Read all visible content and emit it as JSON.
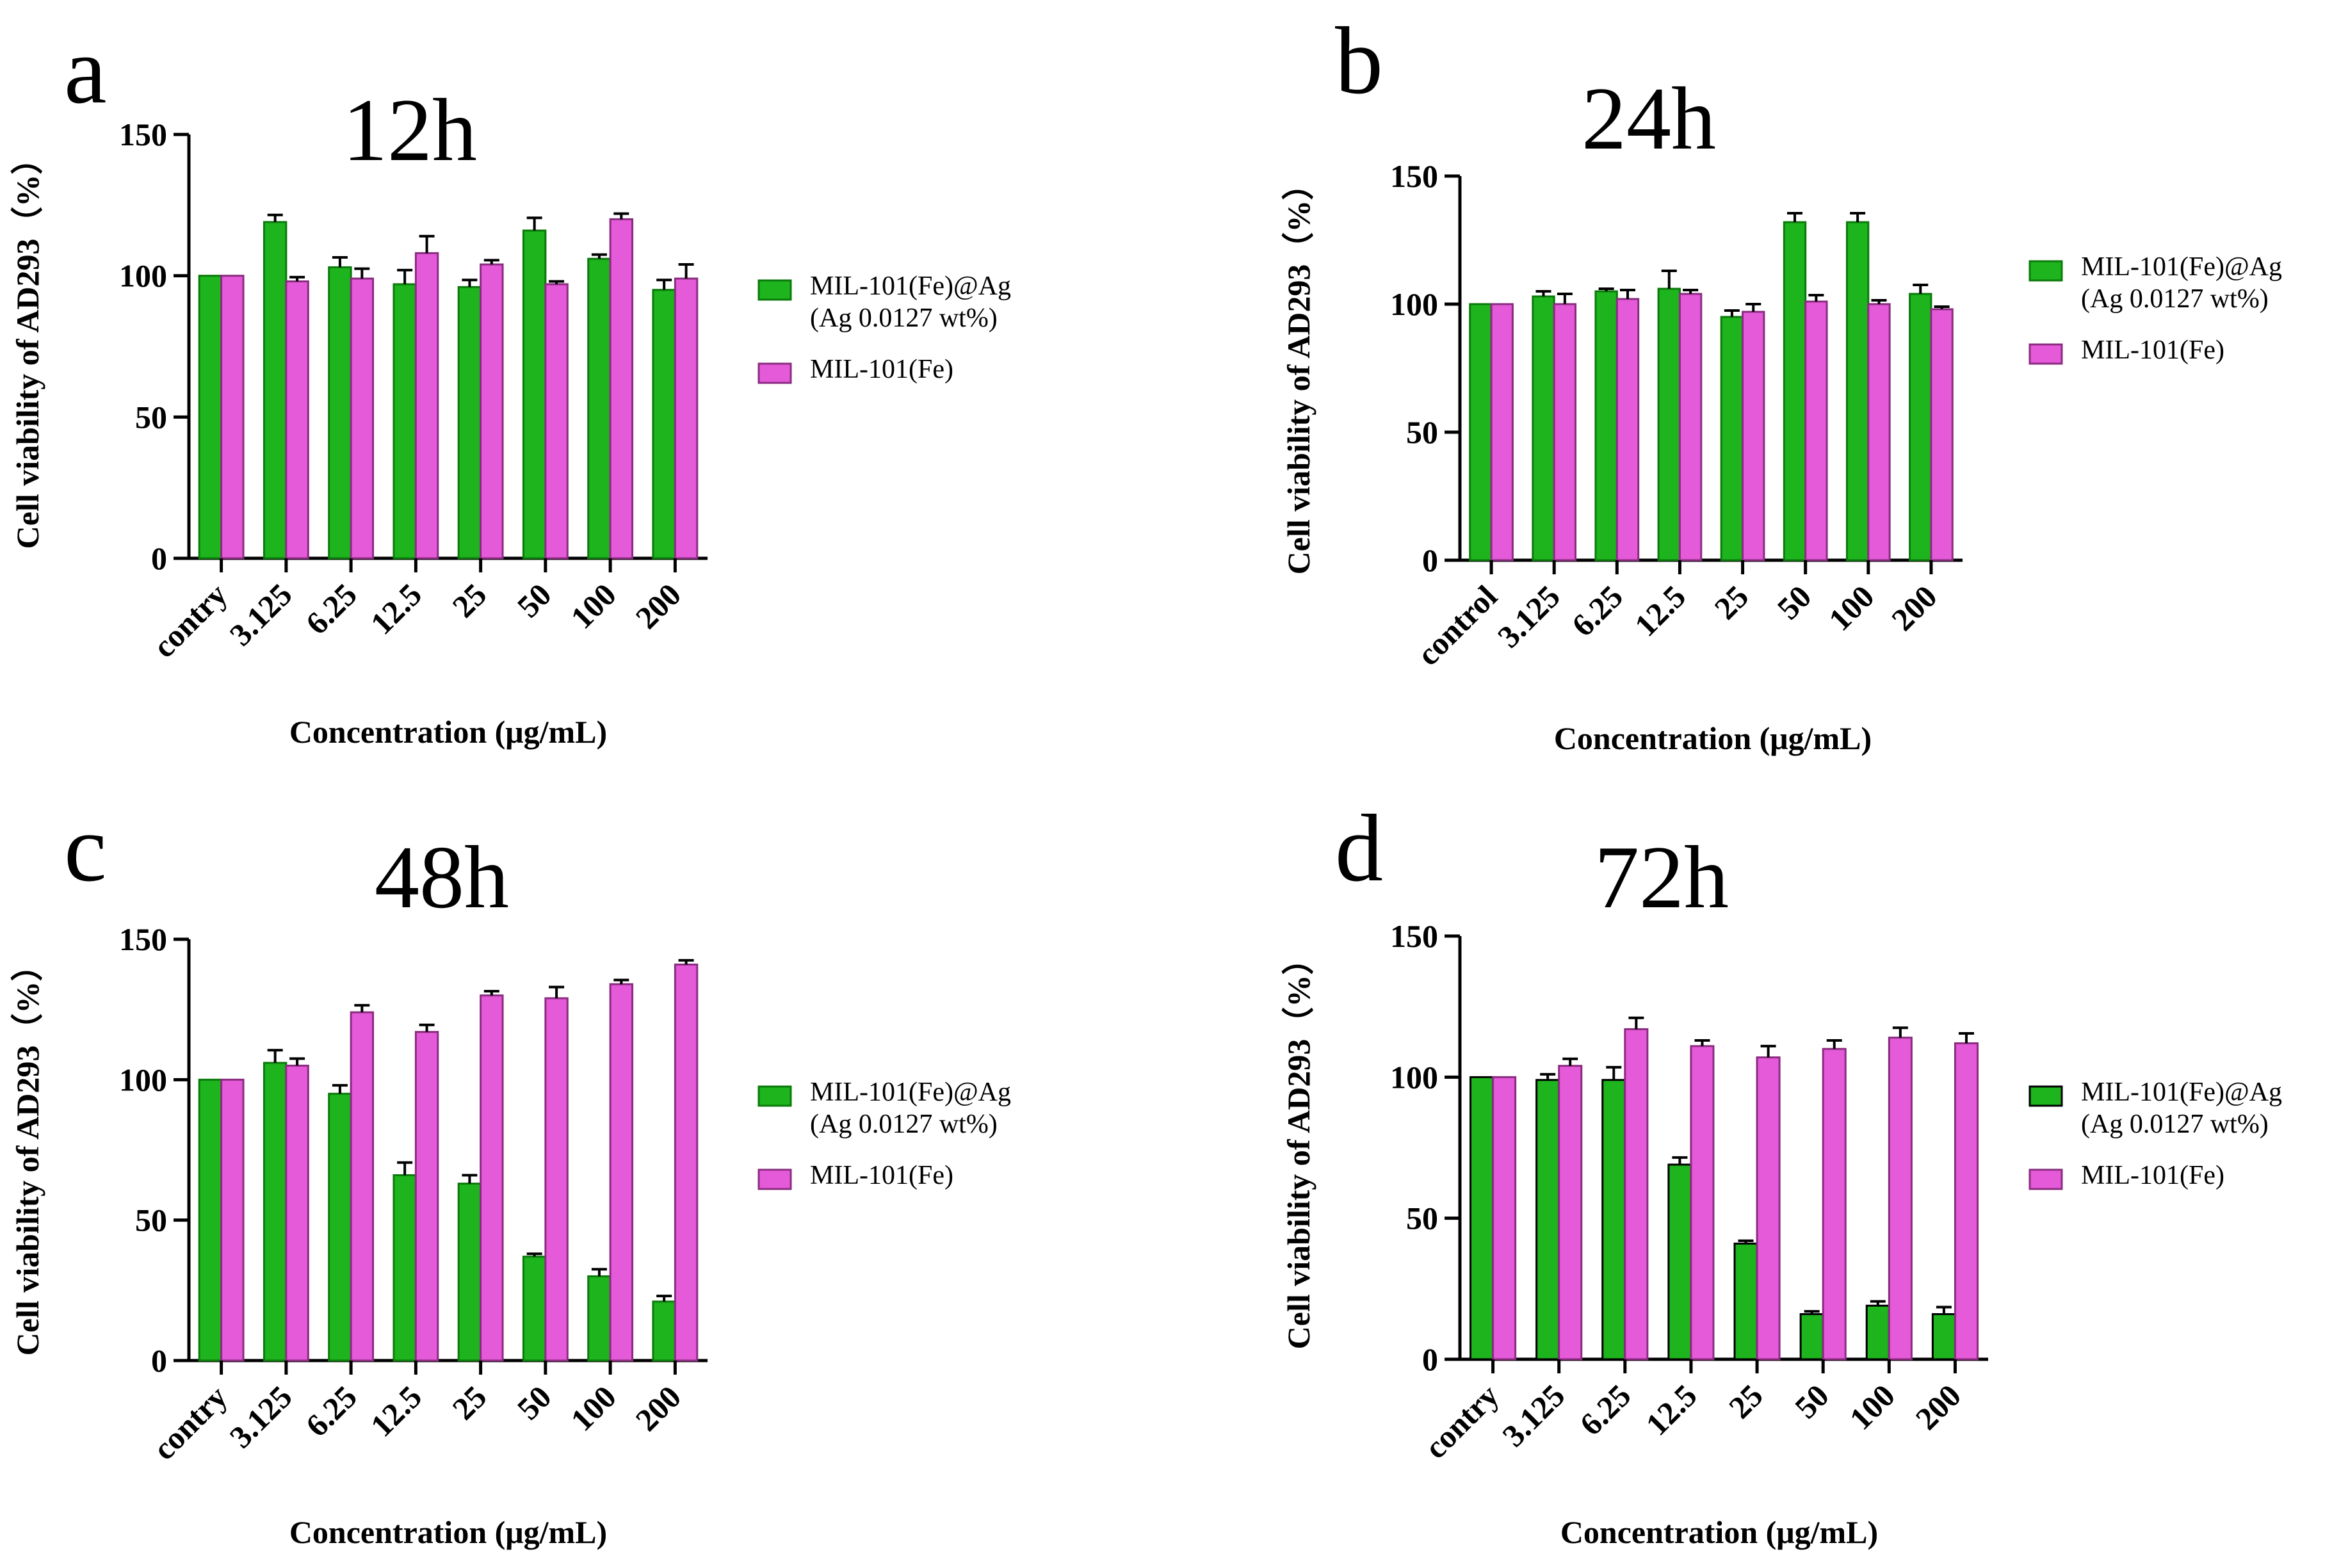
{
  "chart_data": [
    {
      "type": "bar",
      "panel": "a",
      "title": "12h",
      "xlabel": "Concentration (μg/mL)",
      "ylabel": "Cell viability of AD293（%）",
      "ylim": [
        0,
        150
      ],
      "yticks": [
        0,
        50,
        100,
        150
      ],
      "categories": [
        "contry",
        "3.125",
        "6.25",
        "12.5",
        "25",
        "50",
        "100",
        "200"
      ],
      "series": [
        {
          "name": "MIL-101(Fe)@Ag\n(Ag 0.0127 wt%)",
          "color": "#1DB41D",
          "outline": "#0B7A0B",
          "values": [
            100,
            119,
            103,
            97,
            96,
            116,
            106,
            95
          ],
          "errors": [
            0,
            2.5,
            3.5,
            5,
            2.5,
            4.5,
            1.5,
            3.5
          ]
        },
        {
          "name": "MIL-101(Fe)",
          "color": "#E55AD9",
          "outline": "#8A2C80",
          "values": [
            100,
            98,
            99,
            108,
            104,
            97,
            120,
            99
          ],
          "errors": [
            0,
            1.5,
            3.5,
            6,
            1.5,
            1,
            2,
            5
          ]
        }
      ]
    },
    {
      "type": "bar",
      "panel": "b",
      "title": "24h",
      "xlabel": "Concentration (μg/mL)",
      "ylabel": "Cell viability of AD293（%）",
      "ylim": [
        0,
        150
      ],
      "yticks": [
        0,
        50,
        100,
        150
      ],
      "categories": [
        "control",
        "3.125",
        "6.25",
        "12.5",
        "25",
        "50",
        "100",
        "200"
      ],
      "series": [
        {
          "name": "MIL-101(Fe)@Ag\n(Ag 0.0127 wt%)",
          "color": "#1DB41D",
          "outline": "#0B7A0B",
          "values": [
            100,
            103,
            105,
            106,
            95,
            132,
            132,
            104
          ],
          "errors": [
            0,
            2,
            1,
            7,
            2.5,
            3.5,
            3.5,
            3.5
          ]
        },
        {
          "name": "MIL-101(Fe)",
          "color": "#E55AD9",
          "outline": "#8A2C80",
          "values": [
            100,
            100,
            102,
            104,
            97,
            101,
            100,
            98
          ],
          "errors": [
            0,
            4,
            3.5,
            1.5,
            3,
            2.5,
            1.5,
            1
          ]
        }
      ]
    },
    {
      "type": "bar",
      "panel": "c",
      "title": "48h",
      "xlabel": "Concentration (μg/mL)",
      "ylabel": "Cell viability of AD293（%）",
      "ylim": [
        0,
        150
      ],
      "yticks": [
        0,
        50,
        100,
        150
      ],
      "categories": [
        "contry",
        "3.125",
        "6.25",
        "12.5",
        "25",
        "50",
        "100",
        "200"
      ],
      "series": [
        {
          "name": "MIL-101(Fe)@Ag\n(Ag 0.0127 wt%)",
          "color": "#1DB41D",
          "outline": "#0B7A0B",
          "values": [
            100,
            106,
            95,
            66,
            63,
            37,
            30,
            21
          ],
          "errors": [
            0,
            4.5,
            3,
            4.5,
            3,
            1,
            2.5,
            2
          ]
        },
        {
          "name": "MIL-101(Fe)",
          "color": "#E55AD9",
          "outline": "#8A2C80",
          "values": [
            100,
            105,
            124,
            117,
            130,
            129,
            134,
            141
          ],
          "errors": [
            0,
            2.5,
            2.5,
            2.5,
            1.5,
            4,
            1.5,
            1.5
          ]
        }
      ]
    },
    {
      "type": "bar",
      "panel": "d",
      "title": "72h",
      "xlabel": "Concentration (μg/mL)",
      "ylabel": "Cell viability of AD293（%）",
      "ylim": [
        0,
        150
      ],
      "yticks": [
        0,
        50,
        100,
        150
      ],
      "categories": [
        "contry",
        "3.125",
        "6.25",
        "12.5",
        "25",
        "50",
        "100",
        "200"
      ],
      "series": [
        {
          "name": "MIL-101(Fe)@Ag\n(Ag 0.0127 wt%)",
          "color": "#1DB41D",
          "outline": "#000000",
          "values": [
            100,
            99,
            99,
            69,
            41,
            16,
            19,
            16
          ],
          "errors": [
            0,
            2,
            4.5,
            2.5,
            1,
            1,
            1.5,
            2.5
          ]
        },
        {
          "name": "MIL-101(Fe)",
          "color": "#E55AD9",
          "outline": "#8A2C80",
          "values": [
            100,
            104,
            117,
            111,
            107,
            110,
            114,
            112
          ],
          "errors": [
            0,
            2.5,
            4,
            2,
            4,
            3,
            3.5,
            3.5
          ]
        }
      ]
    }
  ]
}
